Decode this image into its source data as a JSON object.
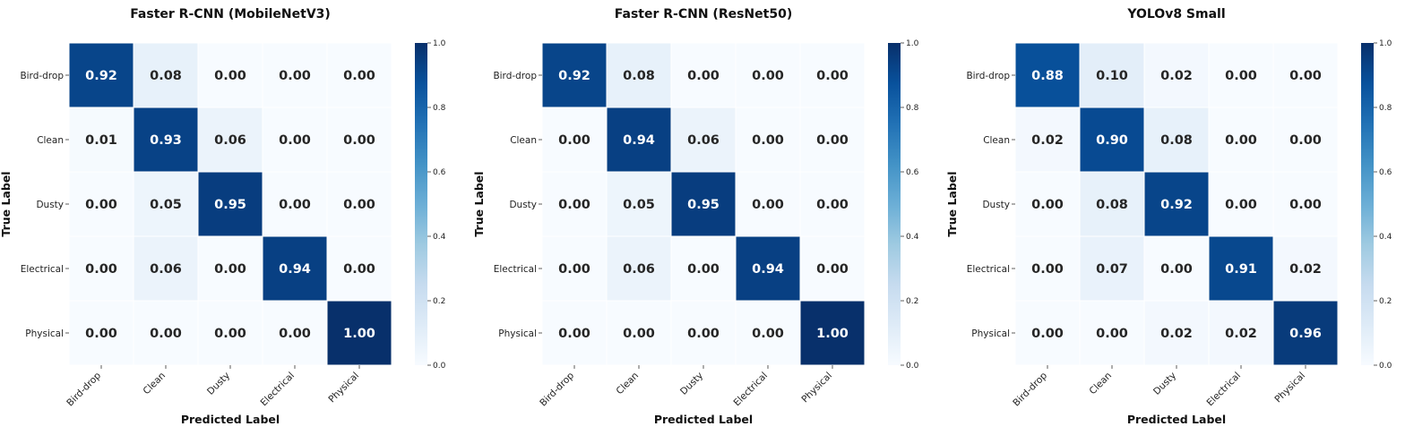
{
  "chart_data": [
    {
      "type": "heatmap",
      "title": "Faster R-CNN (MobileNetV3)",
      "xlabel": "Predicted Label",
      "ylabel": "True Label",
      "x_categories": [
        "Bird-drop",
        "Clean",
        "Dusty",
        "Electrical",
        "Physical"
      ],
      "y_categories": [
        "Bird-drop",
        "Clean",
        "Dusty",
        "Electrical",
        "Physical"
      ],
      "values": [
        [
          0.92,
          0.08,
          0.0,
          0.0,
          0.0
        ],
        [
          0.01,
          0.93,
          0.06,
          0.0,
          0.0
        ],
        [
          0.0,
          0.05,
          0.95,
          0.0,
          0.0
        ],
        [
          0.0,
          0.06,
          0.0,
          0.94,
          0.0
        ],
        [
          0.0,
          0.0,
          0.0,
          0.0,
          1.0
        ]
      ],
      "colorbar": {
        "range": [
          0.0,
          1.0
        ],
        "ticks": [
          "0.0",
          "0.2",
          "0.4",
          "0.6",
          "0.8",
          "1.0"
        ],
        "colormap": "Blues"
      }
    },
    {
      "type": "heatmap",
      "title": "Faster R-CNN (ResNet50)",
      "xlabel": "Predicted Label",
      "ylabel": "True Label",
      "x_categories": [
        "Bird-drop",
        "Clean",
        "Dusty",
        "Electrical",
        "Physical"
      ],
      "y_categories": [
        "Bird-drop",
        "Clean",
        "Dusty",
        "Electrical",
        "Physical"
      ],
      "values": [
        [
          0.92,
          0.08,
          0.0,
          0.0,
          0.0
        ],
        [
          0.0,
          0.94,
          0.06,
          0.0,
          0.0
        ],
        [
          0.0,
          0.05,
          0.95,
          0.0,
          0.0
        ],
        [
          0.0,
          0.06,
          0.0,
          0.94,
          0.0
        ],
        [
          0.0,
          0.0,
          0.0,
          0.0,
          1.0
        ]
      ],
      "colorbar": {
        "range": [
          0.0,
          1.0
        ],
        "ticks": [
          "0.0",
          "0.2",
          "0.4",
          "0.6",
          "0.8",
          "1.0"
        ],
        "colormap": "Blues"
      }
    },
    {
      "type": "heatmap",
      "title": "YOLOv8 Small",
      "xlabel": "Predicted Label",
      "ylabel": "True Label",
      "x_categories": [
        "Bird-drop",
        "Clean",
        "Dusty",
        "Electrical",
        "Physical"
      ],
      "y_categories": [
        "Bird-drop",
        "Clean",
        "Dusty",
        "Electrical",
        "Physical"
      ],
      "values": [
        [
          0.88,
          0.1,
          0.02,
          0.0,
          0.0
        ],
        [
          0.02,
          0.9,
          0.08,
          0.0,
          0.0
        ],
        [
          0.0,
          0.08,
          0.92,
          0.0,
          0.0
        ],
        [
          0.0,
          0.07,
          0.0,
          0.91,
          0.02
        ],
        [
          0.0,
          0.0,
          0.02,
          0.02,
          0.96
        ]
      ],
      "colorbar": {
        "range": [
          0.0,
          1.0
        ],
        "ticks": [
          "0.0",
          "0.2",
          "0.4",
          "0.6",
          "0.8",
          "1.0"
        ],
        "colormap": "Blues"
      }
    }
  ]
}
